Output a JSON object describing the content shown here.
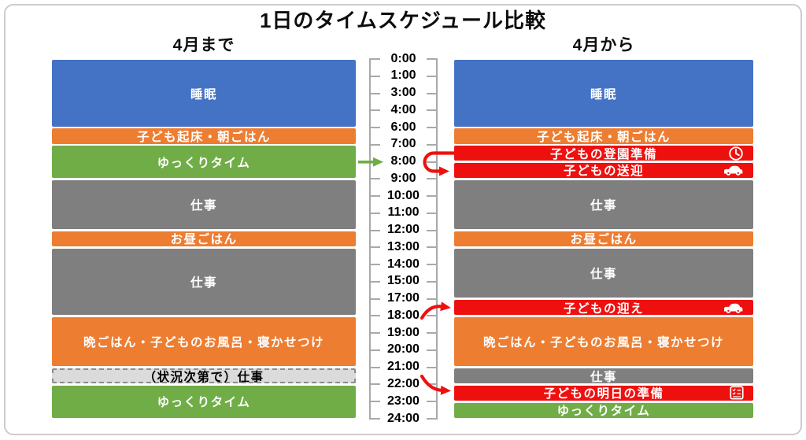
{
  "title": "1日のタイムスケジュール比較",
  "palette": {
    "blue": "#4472C4",
    "orange": "#ED7D31",
    "green": "#70AD47",
    "gray": "#7F7F7F",
    "red": "#EE100F",
    "light_gray": "#DBDBDB"
  },
  "axis": {
    "labels": [
      "0:00",
      "1:00",
      "3:00",
      "4:00",
      "6:00",
      "7:00",
      "8:00",
      "9:00",
      "10:00",
      "11:00",
      "12:00",
      "13:00",
      "14:00",
      "15:00",
      "17:00",
      "18:00",
      "19:00",
      "20:00",
      "21:00",
      "22:00",
      "23:00",
      "24:00"
    ]
  },
  "left": {
    "header": "4月まで",
    "blocks": [
      {
        "label": "睡眠",
        "color": "blue",
        "start": "0:00",
        "end": "6:00"
      },
      {
        "label": "子ども起床・朝ごはん",
        "color": "orange",
        "start": "6:00",
        "end": "7:00"
      },
      {
        "label": "ゆっくりタイム",
        "color": "green",
        "start": "7:00",
        "end": "9:00"
      },
      {
        "label": "仕事",
        "color": "gray",
        "start": "9:00",
        "end": "12:00"
      },
      {
        "label": "お昼ごはん",
        "color": "orange",
        "start": "12:00",
        "end": "13:00"
      },
      {
        "label": "仕事",
        "color": "gray",
        "start": "13:00",
        "end": "18:00"
      },
      {
        "label": "晩ごはん・子どものお風呂・寝かせつけ",
        "color": "orange",
        "start": "18:00",
        "end": "21:00"
      },
      {
        "label": "（状況次第で）仕事",
        "color": "light_gray",
        "style": "dashed",
        "start": "21:00",
        "end": "22:00"
      },
      {
        "label": "ゆっくりタイム",
        "color": "green",
        "start": "22:00",
        "end": "24:00"
      }
    ]
  },
  "right": {
    "header": "4月から",
    "blocks": [
      {
        "label": "睡眠",
        "color": "blue",
        "start": "0:00",
        "end": "6:00"
      },
      {
        "label": "子ども起床・朝ごはん",
        "color": "orange",
        "start": "6:00",
        "end": "7:00"
      },
      {
        "label": "子どもの登園準備",
        "color": "red",
        "icon": "clock-icon",
        "start": "7:00",
        "end": "8:00"
      },
      {
        "label": "子どもの送迎",
        "color": "red",
        "icon": "car-icon",
        "start": "8:00",
        "end": "9:00"
      },
      {
        "label": "仕事",
        "color": "gray",
        "start": "9:00",
        "end": "12:00"
      },
      {
        "label": "お昼ごはん",
        "color": "orange",
        "start": "12:00",
        "end": "13:00"
      },
      {
        "label": "仕事",
        "color": "gray",
        "start": "13:00",
        "end": "17:00"
      },
      {
        "label": "子どもの迎え",
        "color": "red",
        "icon": "car-icon",
        "start": "17:00",
        "end": "18:00"
      },
      {
        "label": "晩ごはん・子どものお風呂・寝かせつけ",
        "color": "orange",
        "start": "18:00",
        "end": "21:00"
      },
      {
        "label": "仕事",
        "color": "gray",
        "start": "21:00",
        "end": "22:00"
      },
      {
        "label": "子どもの明日の準備",
        "color": "red",
        "icon": "checklist-icon",
        "start": "22:00",
        "end": "23:00"
      },
      {
        "label": "ゆっくりタイム",
        "color": "green",
        "start": "23:00",
        "end": "24:00"
      }
    ]
  },
  "arrows": [
    {
      "name": "green-arrow",
      "color": "#70AD47",
      "at": "8:00"
    },
    {
      "name": "red-loop-arrow",
      "color": "#EE100F",
      "at": "8:00"
    },
    {
      "name": "red-curve-arrow-pickup",
      "color": "#EE100F",
      "at": "17:00"
    },
    {
      "name": "red-curve-arrow-prep",
      "color": "#EE100F",
      "at": "22:00"
    }
  ]
}
